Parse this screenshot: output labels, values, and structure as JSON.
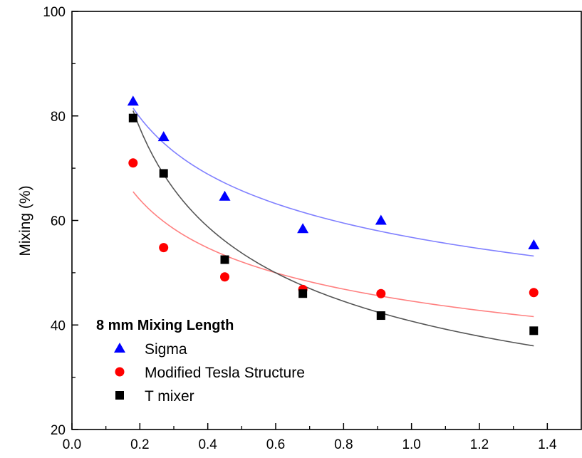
{
  "chart_data": {
    "type": "scatter",
    "title": "",
    "xlabel": "",
    "ylabel": "Mixing (%)",
    "xlim": [
      0.0,
      1.5
    ],
    "ylim": [
      20,
      100
    ],
    "x_ticks": [
      "0.0",
      "0.2",
      "0.4",
      "0.6",
      "0.8",
      "1.0",
      "1.2",
      "1.4"
    ],
    "y_ticks": [
      "20",
      "40",
      "60",
      "80",
      "100"
    ],
    "grid": false,
    "legend": {
      "title": "8 mm Mixing Length",
      "position": "bottom-left",
      "entries": [
        "Sigma",
        "Modified Tesla Structure",
        "T mixer"
      ]
    },
    "series": [
      {
        "name": "Sigma",
        "marker": "triangle",
        "color": "#0000ff",
        "fit_color": "#8080ff",
        "points": [
          {
            "x": 0.18,
            "y": 82.8
          },
          {
            "x": 0.27,
            "y": 76.0
          },
          {
            "x": 0.45,
            "y": 64.6
          },
          {
            "x": 0.68,
            "y": 58.4
          },
          {
            "x": 0.91,
            "y": 60.0
          },
          {
            "x": 1.36,
            "y": 55.3
          }
        ],
        "fit": {
          "x_start": 0.18,
          "x_end": 1.36,
          "y_start": 81.5,
          "y_end": 53.2
        }
      },
      {
        "name": "Modified Tesla Structure",
        "marker": "circle",
        "color": "#ff0000",
        "fit_color": "#ff8080",
        "points": [
          {
            "x": 0.18,
            "y": 71.0
          },
          {
            "x": 0.27,
            "y": 54.8
          },
          {
            "x": 0.45,
            "y": 49.2
          },
          {
            "x": 0.68,
            "y": 46.8
          },
          {
            "x": 0.91,
            "y": 46.0
          },
          {
            "x": 1.36,
            "y": 46.2
          }
        ],
        "fit": {
          "x_start": 0.18,
          "x_end": 1.36,
          "y_start": 65.5,
          "y_end": 41.6
        }
      },
      {
        "name": "T mixer",
        "marker": "square",
        "color": "#000000",
        "fit_color": "#555555",
        "points": [
          {
            "x": 0.18,
            "y": 79.6
          },
          {
            "x": 0.27,
            "y": 69.0
          },
          {
            "x": 0.45,
            "y": 52.5
          },
          {
            "x": 0.68,
            "y": 46.0
          },
          {
            "x": 0.91,
            "y": 41.8
          },
          {
            "x": 1.36,
            "y": 38.9
          }
        ],
        "fit": {
          "x_start": 0.18,
          "x_end": 1.36,
          "y_start": 81.0,
          "y_end": 36.0
        }
      }
    ]
  }
}
